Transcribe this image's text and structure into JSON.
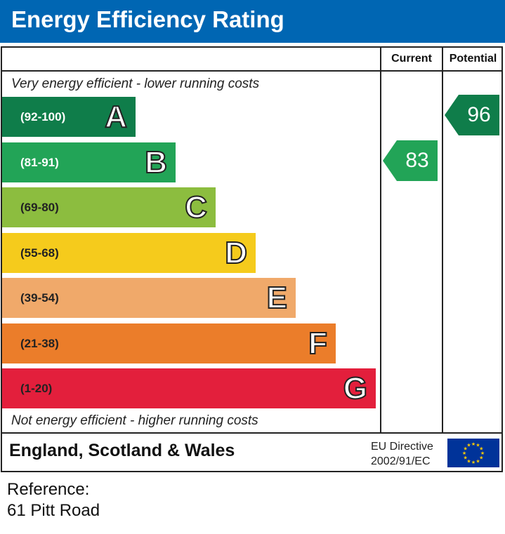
{
  "header": {
    "title": "Energy Efficiency Rating"
  },
  "columns": {
    "current": "Current",
    "potential": "Potential"
  },
  "captions": {
    "top": "Very energy efficient - lower running costs",
    "bottom": "Not energy efficient - higher running costs"
  },
  "chart_data": {
    "type": "bar",
    "title": "Energy Efficiency Rating",
    "categories": [
      "A",
      "B",
      "C",
      "D",
      "E",
      "F",
      "G"
    ],
    "bands": [
      {
        "letter": "A",
        "range": "(92-100)",
        "color": "#0f7d4a",
        "text_color": "#ffffff"
      },
      {
        "letter": "B",
        "range": "(81-91)",
        "color": "#22a457",
        "text_color": "#ffffff"
      },
      {
        "letter": "C",
        "range": "(69-80)",
        "color": "#8cbd3f",
        "text_color": "#222222"
      },
      {
        "letter": "D",
        "range": "(55-68)",
        "color": "#f5cb1c",
        "text_color": "#222222"
      },
      {
        "letter": "E",
        "range": "(39-54)",
        "color": "#f0a96a",
        "text_color": "#222222"
      },
      {
        "letter": "F",
        "range": "(21-38)",
        "color": "#eb7d2a",
        "text_color": "#222222"
      },
      {
        "letter": "G",
        "range": "(1-20)",
        "color": "#e31f3c",
        "text_color": "#222222"
      }
    ],
    "current": {
      "value": 83,
      "band": "B",
      "color": "#22a457"
    },
    "potential": {
      "value": 96,
      "band": "A",
      "color": "#0f7d4a"
    }
  },
  "footer": {
    "region": "England, Scotland & Wales",
    "directive_line1": "EU Directive",
    "directive_line2": "2002/91/EC",
    "flag_color": "#003399",
    "star_color": "#ffcc00"
  },
  "reference": {
    "label": "Reference:",
    "address": "61 Pitt Road"
  }
}
